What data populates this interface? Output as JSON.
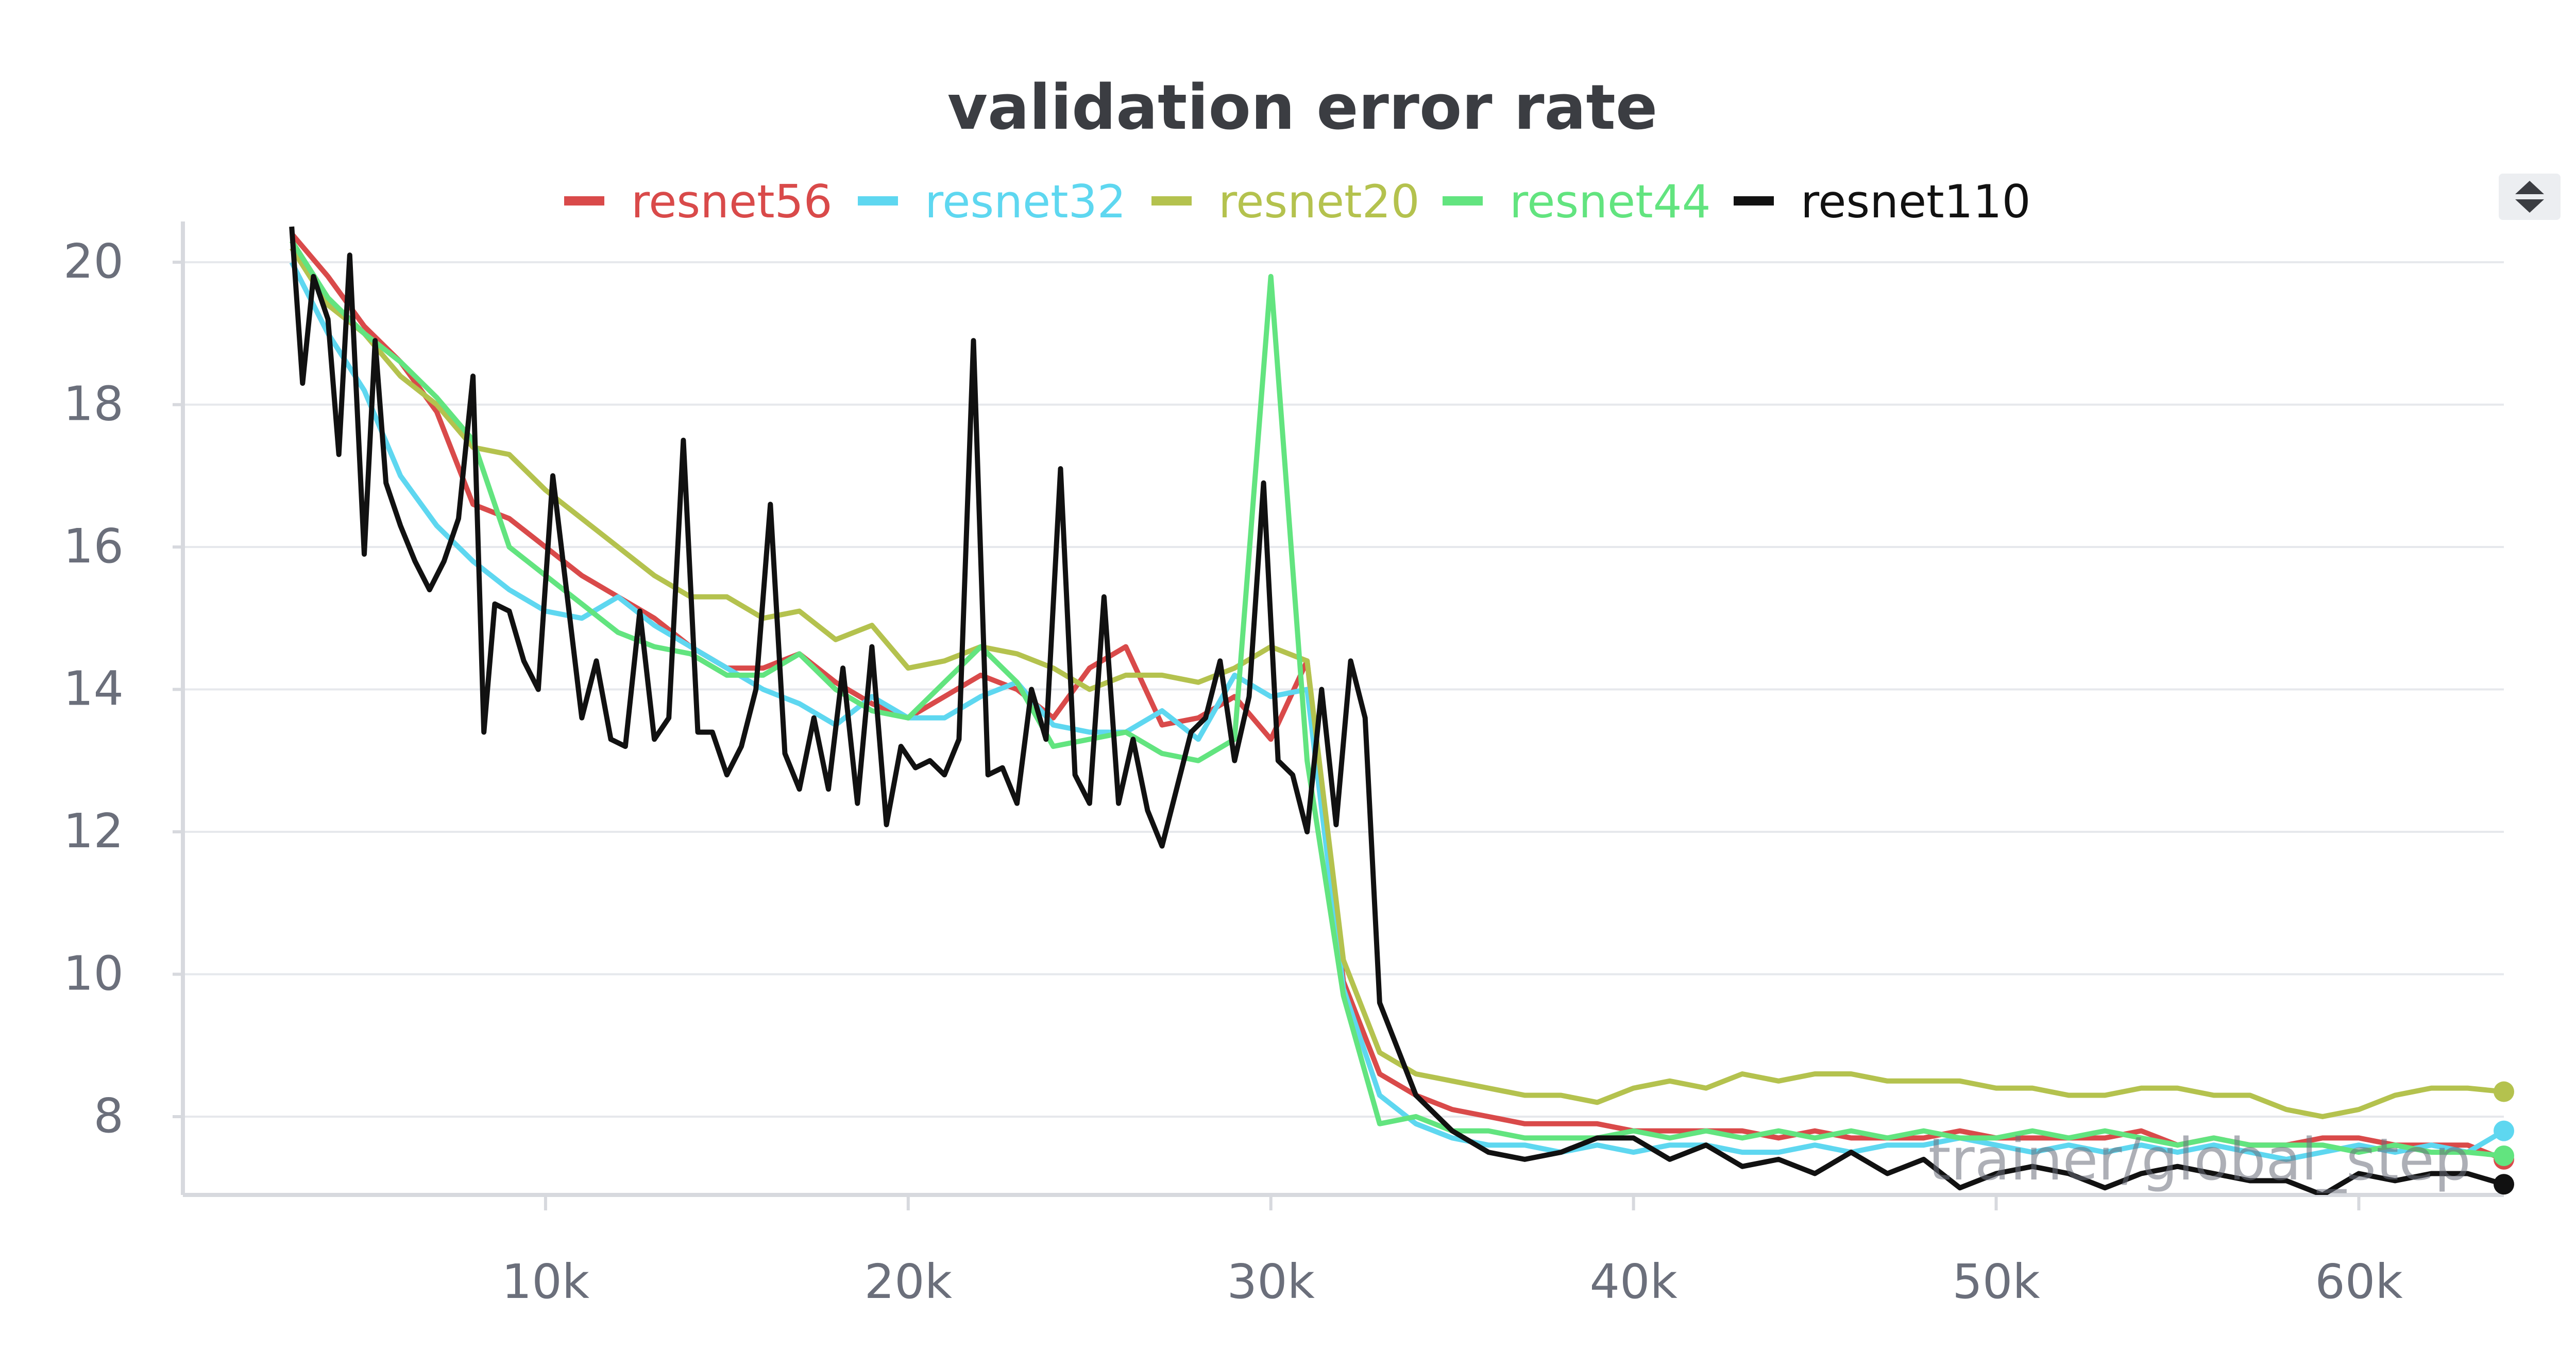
{
  "chart_data": {
    "type": "line",
    "title": "validation error rate",
    "xlabel": "trainer/global_step",
    "ylabel": "",
    "xlim": [
      0,
      64000
    ],
    "ylim": [
      6.9,
      20.5
    ],
    "x_ticks": [
      {
        "value": 10000,
        "label": "10k"
      },
      {
        "value": 20000,
        "label": "20k"
      },
      {
        "value": 30000,
        "label": "30k"
      },
      {
        "value": 40000,
        "label": "40k"
      },
      {
        "value": 50000,
        "label": "50k"
      },
      {
        "value": 60000,
        "label": "60k"
      }
    ],
    "y_ticks": [
      {
        "value": 8,
        "label": "8"
      },
      {
        "value": 10,
        "label": "10"
      },
      {
        "value": 12,
        "label": "12"
      },
      {
        "value": 14,
        "label": "14"
      },
      {
        "value": 16,
        "label": "16"
      },
      {
        "value": 18,
        "label": "18"
      },
      {
        "value": 20,
        "label": "20"
      }
    ],
    "grid": true,
    "legend_position": "top-center",
    "series": [
      {
        "name": "resnet56",
        "color": "#d94a4a",
        "x": [
          3000,
          4000,
          5000,
          6000,
          7000,
          8000,
          9000,
          10000,
          11000,
          12000,
          13000,
          14000,
          15000,
          16000,
          17000,
          18000,
          19000,
          20000,
          21000,
          22000,
          23000,
          24000,
          25000,
          26000,
          27000,
          28000,
          29000,
          30000,
          31000,
          32000,
          33000,
          34000,
          35000,
          36000,
          37000,
          38000,
          39000,
          40000,
          41000,
          42000,
          43000,
          44000,
          45000,
          46000,
          47000,
          48000,
          49000,
          50000,
          51000,
          52000,
          53000,
          54000,
          55000,
          56000,
          57000,
          58000,
          59000,
          60000,
          61000,
          62000,
          63000,
          64000
        ],
        "y": [
          20.4,
          19.8,
          19.1,
          18.6,
          17.9,
          16.6,
          16.4,
          16.0,
          15.6,
          15.3,
          15.0,
          14.6,
          14.3,
          14.3,
          14.5,
          14.1,
          13.8,
          13.6,
          13.9,
          14.2,
          14.0,
          13.6,
          14.3,
          14.6,
          13.5,
          13.6,
          13.9,
          13.3,
          14.4,
          9.9,
          8.6,
          8.3,
          8.1,
          8.0,
          7.9,
          7.9,
          7.9,
          7.8,
          7.8,
          7.8,
          7.8,
          7.7,
          7.8,
          7.7,
          7.7,
          7.7,
          7.8,
          7.7,
          7.7,
          7.7,
          7.7,
          7.8,
          7.6,
          7.7,
          7.6,
          7.6,
          7.7,
          7.7,
          7.6,
          7.6,
          7.6,
          7.4
        ]
      },
      {
        "name": "resnet32",
        "color": "#5ed7f0",
        "x": [
          3000,
          4000,
          5000,
          6000,
          7000,
          8000,
          9000,
          10000,
          11000,
          12000,
          13000,
          14000,
          15000,
          16000,
          17000,
          18000,
          19000,
          20000,
          21000,
          22000,
          23000,
          24000,
          25000,
          26000,
          27000,
          28000,
          29000,
          30000,
          31000,
          32000,
          33000,
          34000,
          35000,
          36000,
          37000,
          38000,
          39000,
          40000,
          41000,
          42000,
          43000,
          44000,
          45000,
          46000,
          47000,
          48000,
          49000,
          50000,
          51000,
          52000,
          53000,
          54000,
          55000,
          56000,
          57000,
          58000,
          59000,
          60000,
          61000,
          62000,
          63000,
          64000
        ],
        "y": [
          20.0,
          19.0,
          18.2,
          17.0,
          16.3,
          15.8,
          15.4,
          15.1,
          15.0,
          15.3,
          14.9,
          14.6,
          14.3,
          14.0,
          13.8,
          13.5,
          13.9,
          13.6,
          13.6,
          13.9,
          14.1,
          13.5,
          13.4,
          13.4,
          13.7,
          13.3,
          14.2,
          13.9,
          14.0,
          9.8,
          8.3,
          7.9,
          7.7,
          7.6,
          7.6,
          7.5,
          7.6,
          7.5,
          7.6,
          7.6,
          7.5,
          7.5,
          7.6,
          7.5,
          7.6,
          7.6,
          7.7,
          7.6,
          7.5,
          7.6,
          7.5,
          7.6,
          7.5,
          7.6,
          7.5,
          7.4,
          7.5,
          7.6,
          7.5,
          7.6,
          7.5,
          7.8
        ]
      },
      {
        "name": "resnet20",
        "color": "#b4c24e",
        "x": [
          3000,
          4000,
          5000,
          6000,
          7000,
          8000,
          9000,
          10000,
          11000,
          12000,
          13000,
          14000,
          15000,
          16000,
          17000,
          18000,
          19000,
          20000,
          21000,
          22000,
          23000,
          24000,
          25000,
          26000,
          27000,
          28000,
          29000,
          30000,
          31000,
          32000,
          33000,
          34000,
          35000,
          36000,
          37000,
          38000,
          39000,
          40000,
          41000,
          42000,
          43000,
          44000,
          45000,
          46000,
          47000,
          48000,
          49000,
          50000,
          51000,
          52000,
          53000,
          54000,
          55000,
          56000,
          57000,
          58000,
          59000,
          60000,
          61000,
          62000,
          63000,
          64000
        ],
        "y": [
          20.2,
          19.4,
          19.0,
          18.4,
          18.0,
          17.4,
          17.3,
          16.8,
          16.4,
          16.0,
          15.6,
          15.3,
          15.3,
          15.0,
          15.1,
          14.7,
          14.9,
          14.3,
          14.4,
          14.6,
          14.5,
          14.3,
          14.0,
          14.2,
          14.2,
          14.1,
          14.3,
          14.6,
          14.4,
          10.2,
          8.9,
          8.6,
          8.5,
          8.4,
          8.3,
          8.3,
          8.2,
          8.4,
          8.5,
          8.4,
          8.6,
          8.5,
          8.6,
          8.6,
          8.5,
          8.5,
          8.5,
          8.4,
          8.4,
          8.3,
          8.3,
          8.4,
          8.4,
          8.3,
          8.3,
          8.1,
          8.0,
          8.1,
          8.3,
          8.4,
          8.4,
          8.35
        ]
      },
      {
        "name": "resnet44",
        "color": "#62e47f",
        "x": [
          3000,
          4000,
          5000,
          6000,
          7000,
          8000,
          9000,
          10000,
          11000,
          12000,
          13000,
          14000,
          15000,
          16000,
          17000,
          18000,
          19000,
          20000,
          21000,
          22000,
          23000,
          24000,
          25000,
          26000,
          27000,
          28000,
          29000,
          30000,
          31000,
          32000,
          33000,
          34000,
          35000,
          36000,
          37000,
          38000,
          39000,
          40000,
          41000,
          42000,
          43000,
          44000,
          45000,
          46000,
          47000,
          48000,
          49000,
          50000,
          51000,
          52000,
          53000,
          54000,
          55000,
          56000,
          57000,
          58000,
          59000,
          60000,
          61000,
          62000,
          63000,
          64000
        ],
        "y": [
          20.3,
          19.5,
          19.0,
          18.6,
          18.1,
          17.5,
          16.0,
          15.6,
          15.2,
          14.8,
          14.6,
          14.5,
          14.2,
          14.2,
          14.5,
          14.0,
          13.7,
          13.6,
          14.1,
          14.6,
          14.1,
          13.2,
          13.3,
          13.4,
          13.1,
          13.0,
          13.3,
          19.8,
          13.0,
          9.7,
          7.9,
          8.0,
          7.8,
          7.8,
          7.7,
          7.7,
          7.7,
          7.8,
          7.7,
          7.8,
          7.7,
          7.8,
          7.7,
          7.8,
          7.7,
          7.8,
          7.7,
          7.7,
          7.8,
          7.7,
          7.8,
          7.7,
          7.6,
          7.7,
          7.6,
          7.6,
          7.6,
          7.5,
          7.6,
          7.5,
          7.5,
          7.45
        ]
      },
      {
        "name": "resnet110",
        "color": "#111111",
        "x": [
          3000,
          3300,
          3600,
          4000,
          4300,
          4600,
          5000,
          5300,
          5600,
          6000,
          6400,
          6800,
          7200,
          7600,
          8000,
          8300,
          8600,
          9000,
          9400,
          9800,
          10200,
          10600,
          11000,
          11400,
          11800,
          12200,
          12600,
          13000,
          13400,
          13800,
          14200,
          14600,
          15000,
          15400,
          15800,
          16200,
          16600,
          17000,
          17400,
          17800,
          18200,
          18600,
          19000,
          19400,
          19800,
          20200,
          20600,
          21000,
          21400,
          21800,
          22200,
          22600,
          23000,
          23400,
          23800,
          24200,
          24600,
          25000,
          25400,
          25800,
          26200,
          26600,
          27000,
          27400,
          27800,
          28200,
          28600,
          29000,
          29400,
          29800,
          30200,
          30600,
          31000,
          31400,
          31800,
          32200,
          32600,
          33000,
          34000,
          35000,
          36000,
          37000,
          38000,
          39000,
          40000,
          41000,
          42000,
          43000,
          44000,
          45000,
          46000,
          47000,
          48000,
          49000,
          50000,
          51000,
          52000,
          53000,
          54000,
          55000,
          56000,
          57000,
          58000,
          59000,
          60000,
          61000,
          62000,
          63000,
          64000
        ],
        "y": [
          20.5,
          18.3,
          19.8,
          19.2,
          17.3,
          20.1,
          15.9,
          18.9,
          16.9,
          16.3,
          15.8,
          15.4,
          15.8,
          16.4,
          18.4,
          13.4,
          15.2,
          15.1,
          14.4,
          14.0,
          17.0,
          15.3,
          13.6,
          14.4,
          13.3,
          13.2,
          15.1,
          13.3,
          13.6,
          17.5,
          13.4,
          13.4,
          12.8,
          13.2,
          14.0,
          16.6,
          13.1,
          12.6,
          13.6,
          12.6,
          14.3,
          12.4,
          14.6,
          12.1,
          13.2,
          12.9,
          13.0,
          12.8,
          13.3,
          18.9,
          12.8,
          12.9,
          12.4,
          14.0,
          13.3,
          17.1,
          12.8,
          12.4,
          15.3,
          12.4,
          13.3,
          12.3,
          11.8,
          12.6,
          13.4,
          13.6,
          14.4,
          13.0,
          13.9,
          16.9,
          13.0,
          12.8,
          12.0,
          14.0,
          12.1,
          14.4,
          13.6,
          9.6,
          8.3,
          7.8,
          7.5,
          7.4,
          7.5,
          7.7,
          7.7,
          7.4,
          7.6,
          7.3,
          7.4,
          7.2,
          7.5,
          7.2,
          7.4,
          7.0,
          7.2,
          7.3,
          7.2,
          7.0,
          7.2,
          7.3,
          7.2,
          7.1,
          7.1,
          6.9,
          7.2,
          7.1,
          7.2,
          7.2,
          7.05
        ]
      }
    ]
  },
  "toolbar": {
    "sort_icon": "sort-updown-icon"
  }
}
